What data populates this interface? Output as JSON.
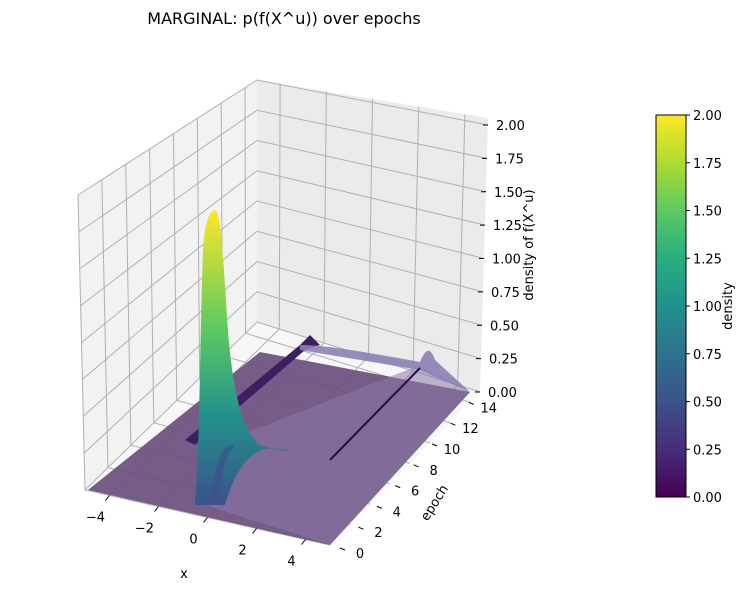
{
  "chart_data": {
    "type": "surface3d",
    "title": "MARGINAL: p(f(X^u)) over epochs",
    "xlabel": "x",
    "ylabel": "epoch",
    "zlabel": "density of f(X^u)",
    "colorbar_label": "density",
    "colormap": "viridis",
    "xlim": [
      -5,
      5
    ],
    "ylim": [
      0,
      15
    ],
    "zlim": [
      0,
      2.0
    ],
    "x_ticks": [
      "−4",
      "−2",
      "0",
      "2",
      "4"
    ],
    "y_ticks": [
      "0",
      "2",
      "4",
      "6",
      "8",
      "10",
      "12",
      "14"
    ],
    "z_ticks": [
      "0.00",
      "0.25",
      "0.50",
      "0.75",
      "1.00",
      "1.25",
      "1.50",
      "1.75",
      "2.00"
    ],
    "colorbar_ticks": [
      "0.00",
      "0.25",
      "0.50",
      "0.75",
      "1.00",
      "1.25",
      "1.50",
      "1.75",
      "2.00"
    ],
    "series": [
      {
        "epoch": 0,
        "description": "sharp peak at x≈0",
        "peak_x": 0.0,
        "peak_density": 2.0
      },
      {
        "epoch": 1,
        "peak_x": 0.0,
        "peak_density": 0.3
      },
      {
        "epoch": 15,
        "description": "nearly flat spread over x",
        "peak_density": 0.15
      }
    ],
    "grid": true
  }
}
